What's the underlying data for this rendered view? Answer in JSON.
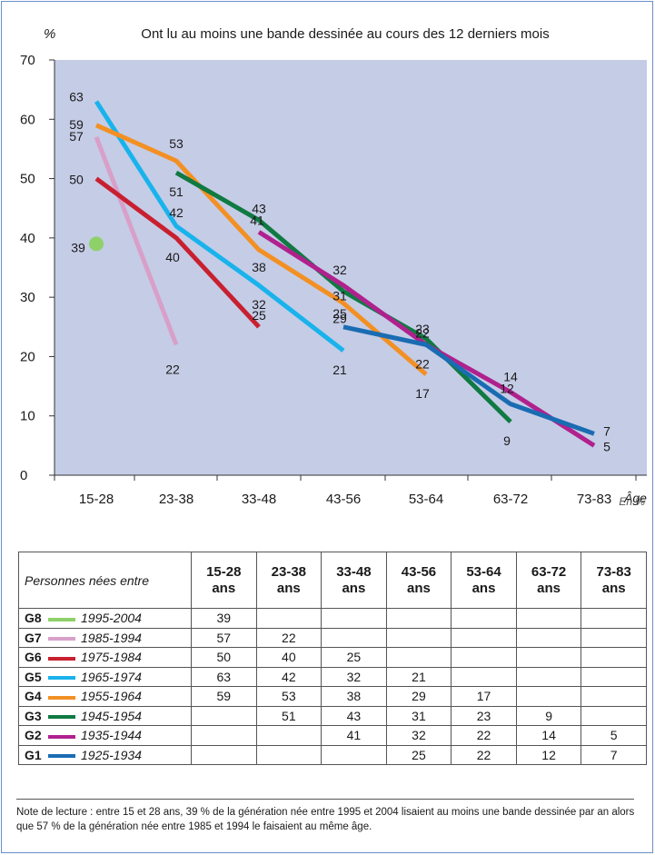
{
  "chart_data": {
    "type": "line",
    "title": "Ont lu au moins une bande dessinée au cours des 12 derniers mois",
    "ylabel": "%",
    "xlabel": "Âge",
    "ylim": [
      0,
      70
    ],
    "yticks": [
      "0",
      "10",
      "20",
      "30",
      "40",
      "50",
      "60",
      "70"
    ],
    "categories": [
      "15-28",
      "23-38",
      "33-48",
      "43-56",
      "53-64",
      "63-72",
      "73-83"
    ],
    "grid": false,
    "background": "#c5cce6",
    "series": [
      {
        "name": "G8",
        "color": "#8ed16a",
        "values": [
          39,
          null,
          null,
          null,
          null,
          null,
          null
        ]
      },
      {
        "name": "G7",
        "color": "#d8a0c9",
        "values": [
          57,
          22,
          null,
          null,
          null,
          null,
          null
        ]
      },
      {
        "name": "G6",
        "color": "#c8202f",
        "values": [
          50,
          40,
          25,
          null,
          null,
          null,
          null
        ]
      },
      {
        "name": "G5",
        "color": "#19b3ec",
        "values": [
          63,
          42,
          32,
          21,
          null,
          null,
          null
        ]
      },
      {
        "name": "G4",
        "color": "#f39023",
        "values": [
          59,
          53,
          38,
          29,
          17,
          null,
          null
        ]
      },
      {
        "name": "G3",
        "color": "#0f7a42",
        "values": [
          null,
          51,
          43,
          31,
          23,
          9,
          null
        ]
      },
      {
        "name": "G2",
        "color": "#b0218e",
        "values": [
          null,
          null,
          41,
          32,
          22,
          14,
          5
        ]
      },
      {
        "name": "G1",
        "color": "#1a6cb2",
        "values": [
          null,
          null,
          null,
          25,
          22,
          12,
          7
        ]
      }
    ]
  },
  "unit_label": "En %",
  "table": {
    "first_header": "Personnes nées entre",
    "headers": [
      [
        "15-28",
        "ans"
      ],
      [
        "23-38",
        "ans"
      ],
      [
        "33-48",
        "ans"
      ],
      [
        "43-56",
        "ans"
      ],
      [
        "53-64",
        "ans"
      ],
      [
        "63-72",
        "ans"
      ],
      [
        "73-83",
        "ans"
      ]
    ],
    "rows": [
      {
        "code": "G8",
        "range": "1995-2004",
        "color": "#8ed16a",
        "cells": [
          "39",
          "",
          "",
          "",
          "",
          "",
          ""
        ]
      },
      {
        "code": "G7",
        "range": "1985-1994",
        "color": "#d8a0c9",
        "cells": [
          "57",
          "22",
          "",
          "",
          "",
          "",
          ""
        ]
      },
      {
        "code": "G6",
        "range": "1975-1984",
        "color": "#c8202f",
        "cells": [
          "50",
          "40",
          "25",
          "",
          "",
          "",
          ""
        ]
      },
      {
        "code": "G5",
        "range": "1965-1974",
        "color": "#19b3ec",
        "cells": [
          "63",
          "42",
          "32",
          "21",
          "",
          "",
          ""
        ]
      },
      {
        "code": "G4",
        "range": "1955-1964",
        "color": "#f39023",
        "cells": [
          "59",
          "53",
          "38",
          "29",
          "17",
          "",
          ""
        ]
      },
      {
        "code": "G3",
        "range": "1945-1954",
        "color": "#0f7a42",
        "cells": [
          "",
          "51",
          "43",
          "31",
          "23",
          "9",
          ""
        ]
      },
      {
        "code": "G2",
        "range": "1935-1944",
        "color": "#b0218e",
        "cells": [
          "",
          "",
          "41",
          "32",
          "22",
          "14",
          "5"
        ]
      },
      {
        "code": "G1",
        "range": "1925-1934",
        "color": "#1a6cb2",
        "cells": [
          "",
          "",
          "",
          "25",
          "22",
          "12",
          "7"
        ]
      }
    ]
  },
  "note": "Note de lecture : entre 15 et 28 ans, 39 % de la génération née entre 1995 et 2004 lisaient au moins une bande dessinée par an alors que 57 % de la génération née entre 1985 et 1994 le faisaient au même âge."
}
